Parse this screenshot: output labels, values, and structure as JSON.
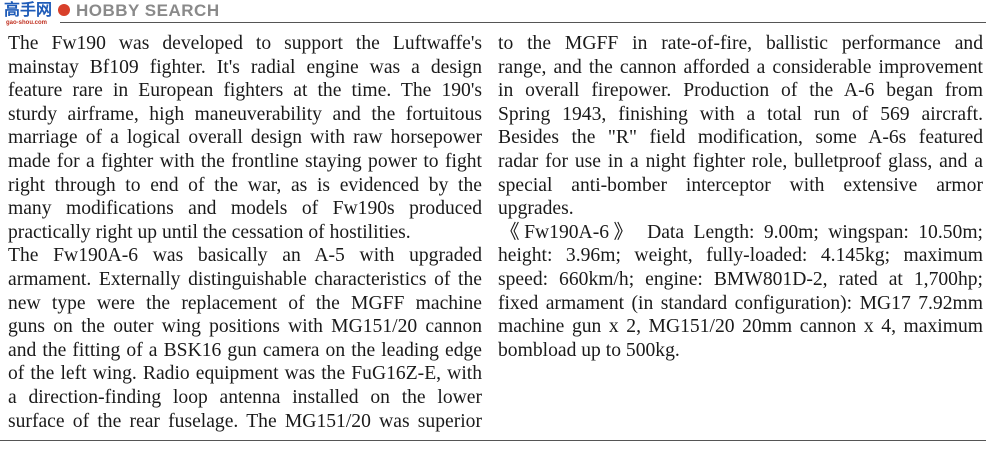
{
  "watermark": {
    "brand": "HOBBY SEARCH",
    "overlay_text": "高手网",
    "overlay_url": "gao-shou.com"
  },
  "left_column": {
    "lines": [
      "The Fw190 was developed to support the Luftwaffe's",
      "mainstay Bf109 fighter. It's radial engine was a design",
      "feature rare in European fighters at the time. The 190's",
      "sturdy airframe, high maneuverability and the fortuitous",
      "marriage of a logical overall design with raw horsepower",
      "made for a fighter with the frontline staying power to fight",
      "right through to end of the war, as is evidenced by the",
      "many modifications and models of Fw190s produced",
      "practically right up until the cessation of hostilities.",
      "The Fw190A-6 was basically an A-5 with upgraded",
      "armament. Externally distinguishable characteristics of the",
      "new type were the replacement of the MGFF machine",
      "guns on the outer wing positions with MG151/20 cannon",
      "and the fitting of a BSK16 gun camera on the leading edge",
      "of the left wing. Radio equipment was the FuG16Z-E, with",
      "a direction-finding loop antenna installed on the lower",
      "surface of the rear fuselage. The MG151/20 was superior"
    ]
  },
  "right_column": {
    "lines": [
      "to the MGFF in rate-of-fire, ballistic performance and",
      "range, and the cannon afforded a considerable improvement",
      "in overall firepower. Production of the A-6 began from",
      "Spring 1943, finishing with a total run of 569 aircraft.",
      "Besides the \"R\" field modification, some A-6s featured",
      "radar for use in a night fighter role, bulletproof glass, and a",
      "special anti-bomber interceptor with extensive armor",
      "upgrades.",
      "《Fw190A-6》 Data Length: 9.00m; wingspan: 10.50m;",
      "height: 3.96m; weight, fully-loaded: 4.145kg; maximum",
      "speed: 660km/h; engine: BMW801D-2, rated at 1,700hp;",
      "fixed armament (in standard configuration): MG17 7.92mm",
      "machine gun x 2, MG151/20 20mm cannon x 4, maximum",
      "bombload up to 500kg."
    ]
  }
}
